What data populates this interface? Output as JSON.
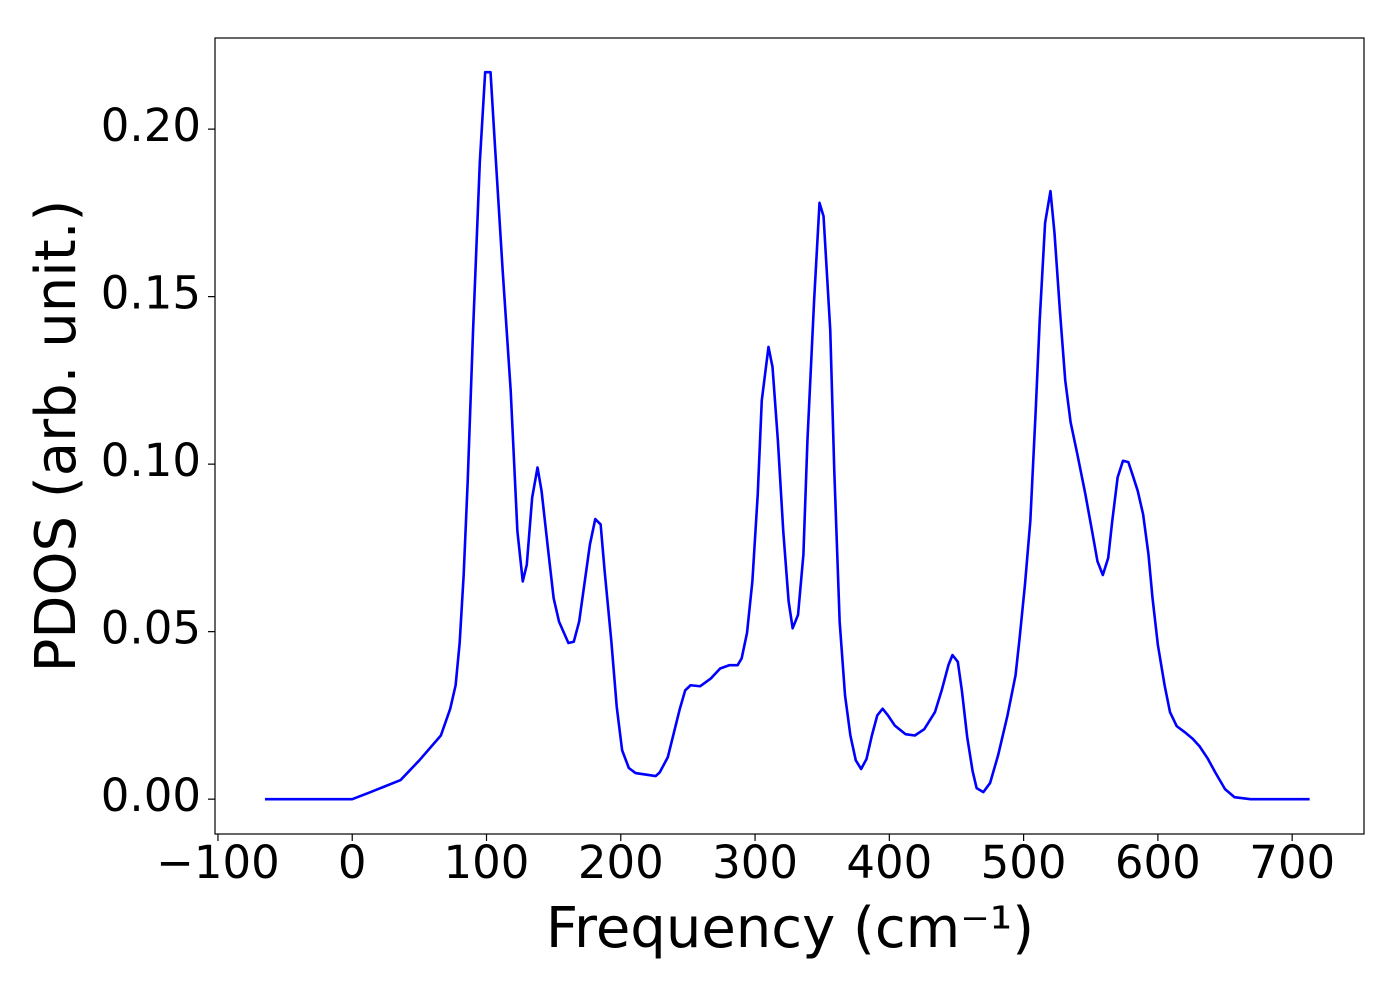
{
  "chart_data": {
    "type": "line",
    "x_label": "Frequency (cm⁻¹)",
    "y_label": "PDOS (arb. unit.)",
    "xlim": [
      -102.2,
      753.5
    ],
    "ylim": [
      -0.0104,
      0.2272
    ],
    "xticks": [
      {
        "value": -100,
        "label": "−100"
      },
      0,
      100,
      200,
      300,
      400,
      500,
      600,
      700
    ],
    "yticks": [
      {
        "value": 0,
        "label": "0.00"
      },
      {
        "value": 0.05,
        "label": "0.05"
      },
      {
        "value": 0.1,
        "label": "0.10"
      },
      {
        "value": 0.15,
        "label": "0.15"
      },
      {
        "value": 0.2,
        "label": "0.20"
      }
    ],
    "grid": false,
    "series": [
      {
        "color": "#0000ff",
        "x": [
          -65,
          0,
          13,
          36,
          50,
          66,
          73,
          77,
          80,
          83,
          86,
          90,
          95,
          99,
          103,
          106,
          112,
          118,
          123,
          127,
          130,
          134,
          138,
          141,
          146,
          150,
          154,
          161,
          165,
          169,
          177,
          181,
          185,
          188,
          193,
          197,
          201,
          206,
          211,
          226,
          229,
          235,
          244,
          248,
          252,
          259,
          267,
          274,
          281,
          287,
          290,
          294,
          298,
          302,
          305,
          310,
          313,
          317,
          321,
          325,
          328,
          332,
          336,
          339,
          344,
          348,
          351,
          356,
          359,
          363,
          367,
          371,
          375,
          379,
          383,
          387,
          391,
          395,
          399,
          404,
          412,
          419,
          426,
          434,
          439,
          444,
          447,
          451,
          454,
          458,
          462,
          465,
          470,
          475,
          481,
          488,
          494,
          497,
          501,
          505,
          509,
          512,
          516,
          520,
          523,
          527,
          531,
          535,
          540,
          546,
          551,
          555,
          559,
          563,
          566,
          570,
          574,
          578,
          581,
          585,
          589,
          593,
          596,
          600,
          605,
          609,
          614,
          620,
          626,
          631,
          637,
          643,
          650,
          657,
          669,
          713
        ],
        "values": [
          0,
          0,
          0.002,
          0.0057,
          0.0116,
          0.019,
          0.027,
          0.034,
          0.0466,
          0.067,
          0.095,
          0.14,
          0.19,
          0.217,
          0.217,
          0.197,
          0.158,
          0.122,
          0.08,
          0.065,
          0.07,
          0.09,
          0.099,
          0.092,
          0.074,
          0.06,
          0.053,
          0.0466,
          0.047,
          0.053,
          0.076,
          0.0836,
          0.082,
          0.068,
          0.047,
          0.0275,
          0.0146,
          0.0093,
          0.0078,
          0.0069,
          0.008,
          0.0125,
          0.027,
          0.0325,
          0.034,
          0.0337,
          0.036,
          0.039,
          0.04,
          0.04,
          0.042,
          0.0496,
          0.065,
          0.091,
          0.119,
          0.135,
          0.129,
          0.107,
          0.08,
          0.059,
          0.051,
          0.055,
          0.073,
          0.107,
          0.149,
          0.178,
          0.174,
          0.14,
          0.098,
          0.053,
          0.031,
          0.019,
          0.0116,
          0.009,
          0.012,
          0.019,
          0.025,
          0.027,
          0.025,
          0.022,
          0.0194,
          0.019,
          0.0209,
          0.026,
          0.0325,
          0.04,
          0.043,
          0.041,
          0.0325,
          0.0185,
          0.0084,
          0.0033,
          0.0021,
          0.0048,
          0.0131,
          0.025,
          0.037,
          0.048,
          0.064,
          0.083,
          0.116,
          0.143,
          0.172,
          0.1815,
          0.169,
          0.146,
          0.125,
          0.1125,
          0.103,
          0.091,
          0.08,
          0.071,
          0.0669,
          0.072,
          0.083,
          0.096,
          0.101,
          0.1006,
          0.097,
          0.092,
          0.085,
          0.073,
          0.06,
          0.046,
          0.034,
          0.026,
          0.0218,
          0.02,
          0.018,
          0.0158,
          0.0122,
          0.0078,
          0.003,
          0.0006,
          0,
          0
        ]
      }
    ]
  }
}
